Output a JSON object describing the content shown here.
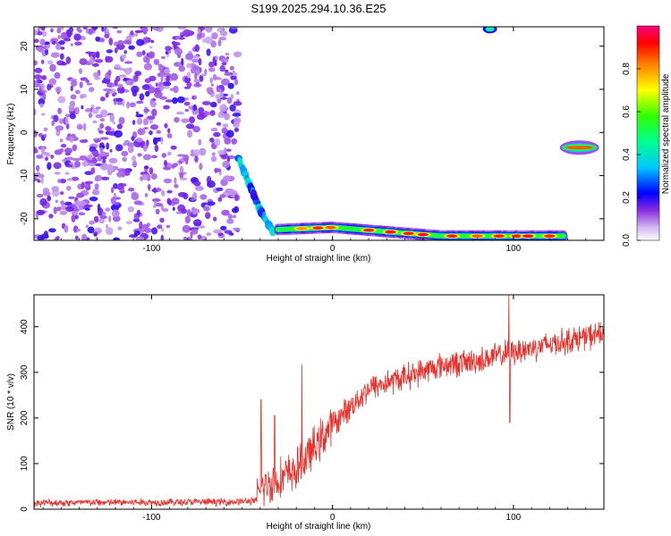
{
  "title": "S199.2025.294.10.36.E25",
  "chart_data": [
    {
      "type": "heatmap",
      "xlabel": "Height of straight line (km)",
      "ylabel": "Frequency (Hz)",
      "xlim": [
        -165,
        150
      ],
      "ylim": [
        -25,
        24.5
      ],
      "xticks": [
        -100,
        0,
        100
      ],
      "yticks": [
        -20,
        -10,
        0,
        10,
        20
      ],
      "colorbar": {
        "label": "Normalized spectral amplitude",
        "ticks": [
          0.0,
          0.2,
          0.4,
          0.6,
          0.8
        ],
        "range": [
          0,
          1
        ],
        "colors": [
          "#ffffff",
          "#c9a8f0",
          "#8a2be2",
          "#0000ff",
          "#00e5ff",
          "#00ff60",
          "#ffff00",
          "#ff9900",
          "#ff0000",
          "#ff0080"
        ]
      },
      "features": [
        {
          "name": "noise band",
          "x_range": [
            -165,
            -52
          ],
          "y_range": [
            -25,
            24.5
          ],
          "amplitude": 0.15
        },
        {
          "name": "transition",
          "x": [
            -52,
            -46,
            -40,
            -33
          ],
          "y": [
            -6,
            -12,
            -18,
            -23
          ],
          "amplitude": 0.35
        },
        {
          "name": "low-frequency line",
          "x": [
            -30,
            0,
            30,
            60,
            90,
            128
          ],
          "y": [
            -22.5,
            -22,
            -23,
            -24,
            -24,
            -24
          ],
          "amplitude": 0.95
        },
        {
          "name": "isolated patch",
          "x": [
            126,
            147
          ],
          "y": [
            -3.5,
            -3.5
          ],
          "amplitude": 0.85
        },
        {
          "name": "top patch",
          "x": [
            87
          ],
          "y": [
            24
          ],
          "amplitude": 0.4
        }
      ]
    },
    {
      "type": "line",
      "xlabel": "Height of straight line (km)",
      "ylabel": "SNR (10 * v/v)",
      "xlim": [
        -165,
        150
      ],
      "ylim": [
        0,
        470
      ],
      "xticks": [
        -100,
        0,
        100
      ],
      "yticks": [
        0,
        100,
        200,
        300,
        400
      ],
      "color": "#e8302a",
      "trend": {
        "x": [
          -165,
          -60,
          -42,
          -40,
          -20,
          0,
          20,
          40,
          60,
          80,
          100,
          120,
          150
        ],
        "y": [
          14,
          16,
          18,
          45,
          85,
          185,
          265,
          290,
          315,
          325,
          345,
          362,
          385
        ]
      },
      "spikes": [
        {
          "x": -39.5,
          "y": 240
        },
        {
          "x": -32,
          "y": 205
        },
        {
          "x": -17,
          "y": 318
        },
        {
          "x": 97.5,
          "y": 470
        },
        {
          "x": 98,
          "y": 190
        },
        {
          "x": 148,
          "y": 410
        }
      ]
    }
  ]
}
